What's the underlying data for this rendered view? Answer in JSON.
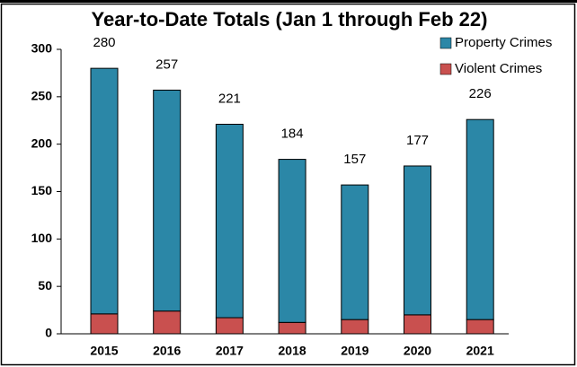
{
  "chart_data": {
    "type": "stacked_bar",
    "title": "Year-to-Date Totals (Jan 1 through Feb 22)",
    "categories": [
      "2015",
      "2016",
      "2017",
      "2018",
      "2019",
      "2020",
      "2021"
    ],
    "series": [
      {
        "name": "Violent Crimes",
        "color": "#c9504f",
        "values": [
          21,
          24,
          17,
          12,
          15,
          20,
          15
        ]
      },
      {
        "name": "Property Crimes",
        "color": "#2b87a7",
        "values": [
          259,
          233,
          204,
          172,
          142,
          157,
          211
        ]
      }
    ],
    "totals": [
      280,
      257,
      221,
      184,
      157,
      177,
      226
    ],
    "ylim": [
      0,
      300
    ],
    "yticks": [
      0,
      50,
      100,
      150,
      200,
      250,
      300
    ],
    "grid": false
  }
}
